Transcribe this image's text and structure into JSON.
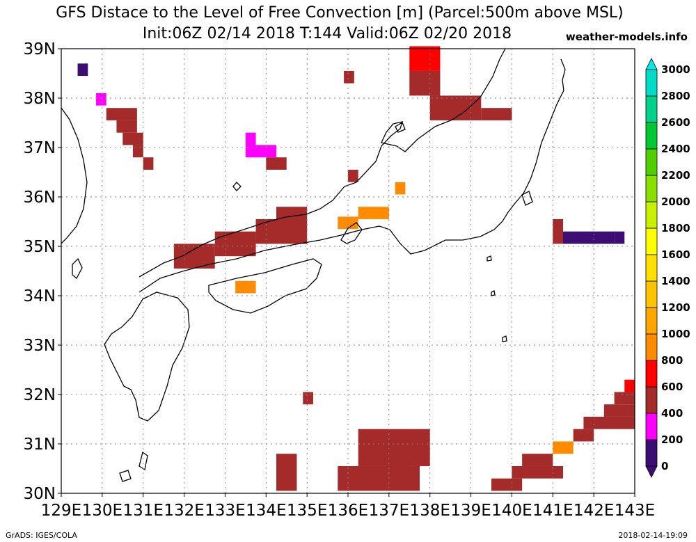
{
  "title_line1": "GFS Distace to the Level of Free Convection [m] (Parcel:500m above MSL)",
  "title_line2": "Init:06Z 02/14 2018 T:144 Valid:06Z 02/20 2018",
  "brand": "weather-models.info",
  "footer_left": "GrADS: IGES/COLA",
  "footer_right": "2018-02-14-19:09",
  "lat_labels": [
    "39N",
    "38N",
    "37N",
    "36N",
    "35N",
    "34N",
    "33N",
    "32N",
    "31N",
    "30N"
  ],
  "lon_labels": [
    "129E",
    "130E",
    "131E",
    "132E",
    "133E",
    "134E",
    "135E",
    "136E",
    "137E",
    "138E",
    "139E",
    "140E",
    "141E",
    "142E",
    "143E"
  ],
  "colorbar": {
    "levels": [
      "0",
      "200",
      "400",
      "600",
      "800",
      "1000",
      "1200",
      "1400",
      "1600",
      "1800",
      "2000",
      "2200",
      "2400",
      "2600",
      "2800",
      "3000"
    ],
    "colors": [
      "#3c0d72",
      "#ff00ff",
      "#a52a2a",
      "#ff0000",
      "#ff8c00",
      "#ffa500",
      "#ffc200",
      "#ffe000",
      "#ffff00",
      "#c8f000",
      "#8ce000",
      "#50d000",
      "#00c832",
      "#00d28c",
      "#00dcc8",
      "#00e8e8"
    ],
    "under_color": "#3c0d72",
    "over_color": "#00e8e8"
  },
  "chart_data": {
    "type": "heatmap",
    "title": "GFS Distace to the Level of Free Convection [m] (Parcel:500m above MSL)",
    "units": "m",
    "lon_range": [
      129,
      143
    ],
    "lat_range": [
      30,
      39
    ],
    "cells": [
      {
        "lon": 129.4,
        "lat": 38.45,
        "dlon": 0.25,
        "dlat": 0.25,
        "v": 150
      },
      {
        "lon": 129.85,
        "lat": 37.85,
        "dlon": 0.25,
        "dlat": 0.25,
        "v": 350
      },
      {
        "lon": 130.1,
        "lat": 37.55,
        "dlon": 0.75,
        "dlat": 0.25,
        "v": 450
      },
      {
        "lon": 130.35,
        "lat": 37.3,
        "dlon": 0.5,
        "dlat": 0.25,
        "v": 500
      },
      {
        "lon": 130.5,
        "lat": 37.05,
        "dlon": 0.5,
        "dlat": 0.25,
        "v": 480
      },
      {
        "lon": 130.75,
        "lat": 36.8,
        "dlon": 0.25,
        "dlat": 0.25,
        "v": 520
      },
      {
        "lon": 131.0,
        "lat": 36.55,
        "dlon": 0.25,
        "dlat": 0.25,
        "v": 520
      },
      {
        "lon": 133.5,
        "lat": 37.05,
        "dlon": 0.25,
        "dlat": 0.25,
        "v": 350
      },
      {
        "lon": 133.5,
        "lat": 36.8,
        "dlon": 0.75,
        "dlat": 0.25,
        "v": 350
      },
      {
        "lon": 134.0,
        "lat": 36.55,
        "dlon": 0.5,
        "dlat": 0.25,
        "v": 500
      },
      {
        "lon": 135.9,
        "lat": 38.3,
        "dlon": 0.25,
        "dlat": 0.25,
        "v": 500
      },
      {
        "lon": 136.0,
        "lat": 36.3,
        "dlon": 0.25,
        "dlat": 0.25,
        "v": 560
      },
      {
        "lon": 137.15,
        "lat": 36.05,
        "dlon": 0.25,
        "dlat": 0.25,
        "v": 800
      },
      {
        "lon": 136.25,
        "lat": 35.55,
        "dlon": 0.75,
        "dlat": 0.25,
        "v": 850
      },
      {
        "lon": 135.75,
        "lat": 35.35,
        "dlon": 0.5,
        "dlat": 0.25,
        "v": 820
      },
      {
        "lon": 137.5,
        "lat": 38.55,
        "dlon": 0.75,
        "dlat": 0.5,
        "v": 700
      },
      {
        "lon": 137.5,
        "lat": 38.05,
        "dlon": 0.75,
        "dlat": 0.5,
        "v": 550
      },
      {
        "lon": 138.0,
        "lat": 37.55,
        "dlon": 1.25,
        "dlat": 0.5,
        "v": 480
      },
      {
        "lon": 139.25,
        "lat": 37.55,
        "dlon": 0.75,
        "dlat": 0.25,
        "v": 420
      },
      {
        "lon": 134.25,
        "lat": 35.3,
        "dlon": 0.75,
        "dlat": 0.5,
        "v": 560
      },
      {
        "lon": 133.75,
        "lat": 35.05,
        "dlon": 1.25,
        "dlat": 0.5,
        "v": 500
      },
      {
        "lon": 132.75,
        "lat": 34.8,
        "dlon": 1.0,
        "dlat": 0.5,
        "v": 520
      },
      {
        "lon": 131.75,
        "lat": 34.55,
        "dlon": 1.0,
        "dlat": 0.5,
        "v": 480
      },
      {
        "lon": 133.25,
        "lat": 34.05,
        "dlon": 0.5,
        "dlat": 0.25,
        "v": 850
      },
      {
        "lon": 141.0,
        "lat": 35.05,
        "dlon": 0.25,
        "dlat": 0.5,
        "v": 450
      },
      {
        "lon": 141.25,
        "lat": 35.05,
        "dlon": 1.25,
        "dlat": 0.25,
        "v": 150
      },
      {
        "lon": 142.5,
        "lat": 35.05,
        "dlon": 0.25,
        "dlat": 0.25,
        "v": 50
      },
      {
        "lon": 134.9,
        "lat": 31.8,
        "dlon": 0.25,
        "dlat": 0.25,
        "v": 500
      },
      {
        "lon": 134.25,
        "lat": 30.05,
        "dlon": 0.5,
        "dlat": 0.75,
        "v": 400
      },
      {
        "lon": 135.75,
        "lat": 30.05,
        "dlon": 2.0,
        "dlat": 0.5,
        "v": 400
      },
      {
        "lon": 136.25,
        "lat": 30.55,
        "dlon": 1.75,
        "dlat": 0.75,
        "v": 450
      },
      {
        "lon": 137.0,
        "lat": 30.55,
        "dlon": 0.5,
        "dlat": 0.7,
        "v": 550
      },
      {
        "lon": 139.5,
        "lat": 30.05,
        "dlon": 0.75,
        "dlat": 0.25,
        "v": 500
      },
      {
        "lon": 140.0,
        "lat": 30.3,
        "dlon": 1.25,
        "dlat": 0.25,
        "v": 420
      },
      {
        "lon": 140.25,
        "lat": 30.55,
        "dlon": 0.75,
        "dlat": 0.25,
        "v": 520
      },
      {
        "lon": 141.0,
        "lat": 30.8,
        "dlon": 0.5,
        "dlat": 0.25,
        "v": 900
      },
      {
        "lon": 141.5,
        "lat": 31.05,
        "dlon": 0.5,
        "dlat": 0.25,
        "v": 500
      },
      {
        "lon": 141.75,
        "lat": 31.3,
        "dlon": 1.25,
        "dlat": 0.25,
        "v": 480
      },
      {
        "lon": 142.25,
        "lat": 31.55,
        "dlon": 0.75,
        "dlat": 0.25,
        "v": 420
      },
      {
        "lon": 142.5,
        "lat": 31.8,
        "dlon": 0.5,
        "dlat": 0.25,
        "v": 450
      },
      {
        "lon": 142.75,
        "lat": 32.05,
        "dlon": 0.25,
        "dlat": 0.25,
        "v": 620
      }
    ]
  }
}
